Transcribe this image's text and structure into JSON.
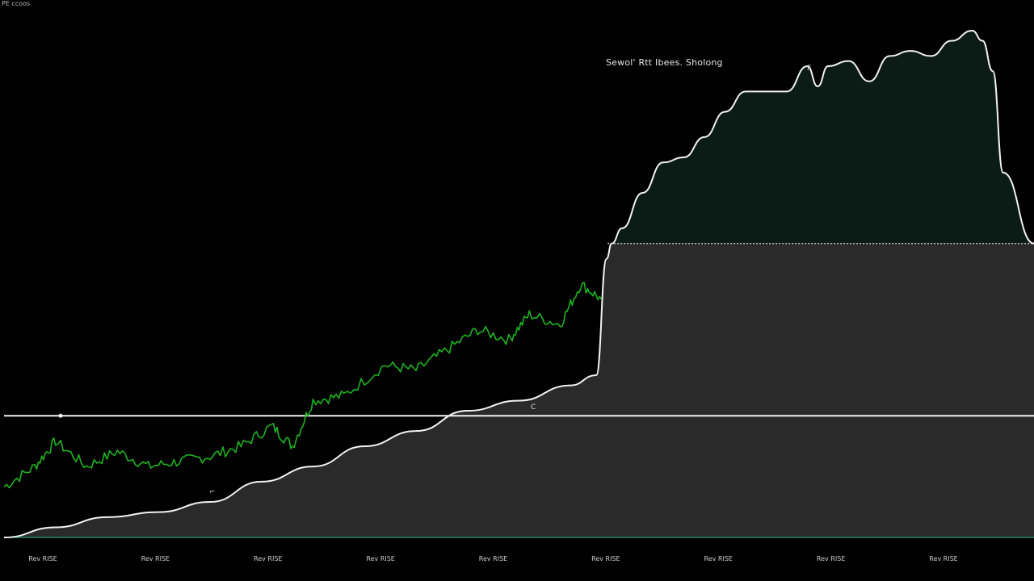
{
  "corner_label": "PE ccoos",
  "annotation": "Sewol' Rtt Ibees. Sholong",
  "marks": {
    "m1": "⌐",
    "m2": "C",
    "m3": "F"
  },
  "colors": {
    "background": "#000000",
    "line_green": "#1db41d",
    "curve": "#f2f2f2",
    "area_fill": "#2a2a2a",
    "area_fill_dark_green": "#0b1c16",
    "baseline": "#1f8a5a"
  },
  "chart_data": {
    "type": "line",
    "title": "",
    "xlabel": "",
    "ylabel": "",
    "x_tick_labels": [
      "Rev RISE",
      "Rev RISE",
      "Rev RISE",
      "Rev RISE",
      "Rev RISE",
      "Rev RISE",
      "Rev RISE",
      "Rev RISE",
      "Rev RISE"
    ],
    "ylim": [
      0,
      100
    ],
    "xlim": [
      0,
      100
    ],
    "reference_lines": {
      "solid_horizontal": 24,
      "dotted_horizontal": 58
    },
    "series": [
      {
        "values_x": [
          0,
          3,
          5,
          8,
          11,
          14,
          17,
          20,
          23,
          26,
          28,
          30,
          33,
          37,
          40,
          43,
          46,
          49,
          51,
          54,
          56,
          58
        ],
        "values_y": [
          10,
          14,
          19,
          14,
          17,
          14,
          15,
          16,
          18,
          22,
          18,
          27,
          28,
          34,
          33,
          37,
          41,
          39,
          44,
          42,
          50,
          47
        ],
        "noisy": true
      },
      {
        "values_x": [
          0,
          5,
          10,
          15,
          20,
          25,
          30,
          35,
          40,
          45,
          50,
          55,
          57.5,
          58.5,
          59,
          60,
          62,
          64,
          66,
          68,
          70,
          72,
          74,
          76,
          78,
          79,
          80,
          82,
          84,
          86,
          88,
          90,
          92,
          94,
          95,
          96,
          97,
          100
        ],
        "values_y": [
          0,
          2,
          4,
          5,
          7,
          11,
          14,
          18,
          21,
          25,
          27,
          30,
          32,
          55,
          58,
          61,
          68,
          74,
          75,
          79,
          84,
          88,
          88,
          88,
          93,
          89,
          93,
          94,
          90,
          95,
          96,
          95,
          98,
          100,
          98,
          92,
          72,
          58
        ]
      }
    ]
  }
}
